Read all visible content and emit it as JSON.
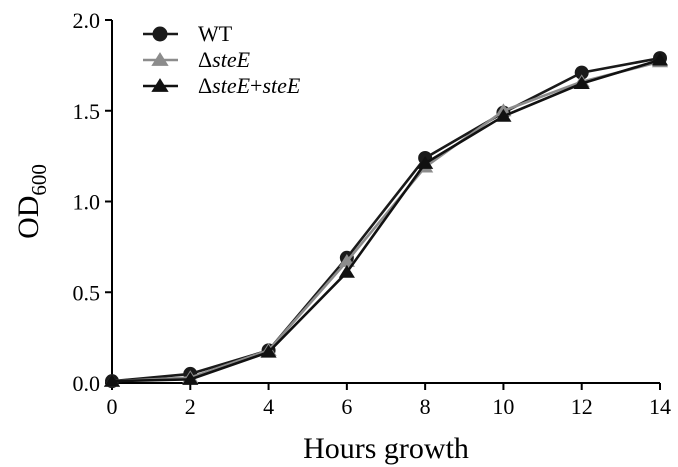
{
  "chart_data": {
    "type": "line",
    "xlabel": "Hours growth",
    "ylabel": "OD",
    "ylabel_sub": "600",
    "xlim": [
      0,
      14
    ],
    "ylim": [
      0,
      2.0
    ],
    "x_ticks": [
      0,
      2,
      4,
      6,
      8,
      10,
      12,
      14
    ],
    "x_tick_labels": [
      "0",
      "2",
      "4",
      "6",
      "8",
      "10",
      "12",
      "14"
    ],
    "y_ticks": [
      0,
      0.5,
      1.0,
      1.5,
      2.0
    ],
    "y_tick_labels": [
      "0.0",
      "0.5",
      "1.0",
      "1.5",
      "2.0"
    ],
    "grid": false,
    "legend_position": "top-left",
    "x": [
      0,
      2,
      4,
      6,
      8,
      10,
      12,
      14
    ],
    "series": [
      {
        "name": "WT",
        "name_parts": [
          {
            "text": "WT",
            "italic": false
          }
        ],
        "marker": "circle",
        "color": "#1a1a1a",
        "values": [
          0.01,
          0.05,
          0.18,
          0.69,
          1.24,
          1.49,
          1.71,
          1.79
        ]
      },
      {
        "name": "ΔsteE",
        "name_parts": [
          {
            "text": "Δ",
            "italic": false
          },
          {
            "text": "steE",
            "italic": true
          }
        ],
        "marker": "triangle",
        "color": "#8c8c8c",
        "values": [
          0.01,
          0.03,
          0.18,
          0.67,
          1.19,
          1.5,
          1.66,
          1.77
        ]
      },
      {
        "name": "ΔsteE+steE",
        "name_parts": [
          {
            "text": "Δ",
            "italic": false
          },
          {
            "text": "steE",
            "italic": true
          },
          {
            "text": "+",
            "italic": false
          },
          {
            "text": "steE",
            "italic": true
          }
        ],
        "marker": "triangle",
        "color": "#111111",
        "values": [
          0.01,
          0.02,
          0.17,
          0.61,
          1.21,
          1.47,
          1.65,
          1.78
        ]
      }
    ]
  }
}
